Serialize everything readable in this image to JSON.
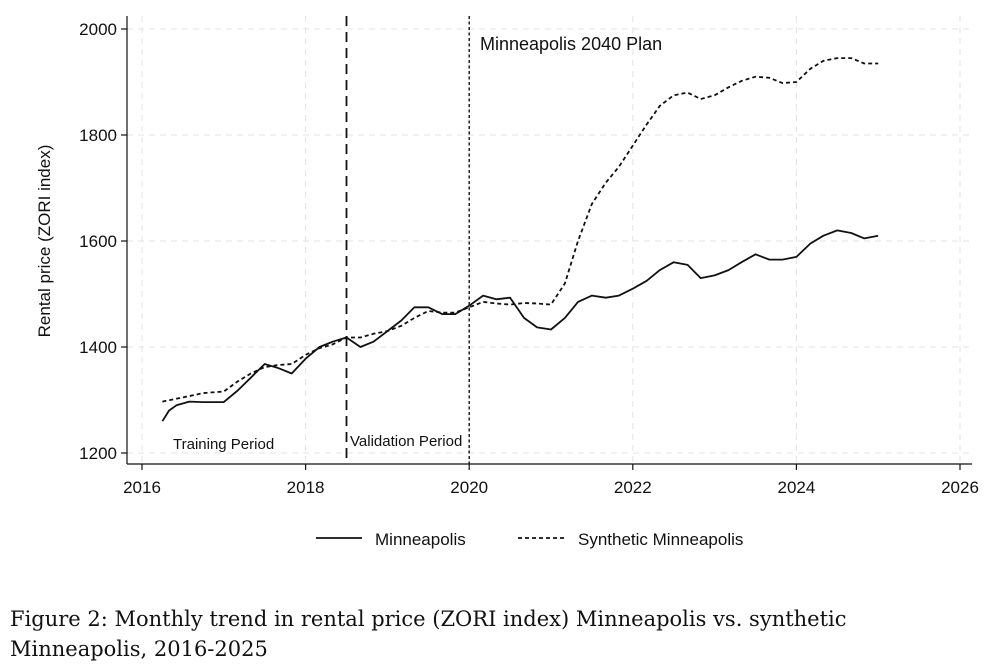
{
  "chart_data": {
    "type": "line",
    "xlabel": "",
    "ylabel": "Rental price (ZORI index)",
    "xlim": [
      2016,
      2026
    ],
    "ylim": [
      1200,
      2000
    ],
    "xticks": [
      "2016",
      "2018",
      "2020",
      "2022",
      "2024",
      "2026"
    ],
    "yticks": [
      "1200",
      "1400",
      "1600",
      "1800",
      "2000"
    ],
    "grid": true,
    "legend_position": "bottom",
    "vertical_lines": [
      {
        "x": 2018.5,
        "style": "long-dash",
        "label": "Validation Period"
      },
      {
        "x": 2020.0,
        "style": "dotted",
        "label": "Minneapolis 2040 Plan"
      }
    ],
    "annotations": {
      "training": "Training Period",
      "validation": "Validation Period",
      "plan": "Minneapolis 2040 Plan"
    },
    "series": [
      {
        "name": "Minneapolis",
        "style": "solid",
        "x": [
          2016.25,
          2016.33,
          2016.42,
          2016.58,
          2016.75,
          2017.0,
          2017.17,
          2017.33,
          2017.5,
          2017.67,
          2017.83,
          2018.0,
          2018.17,
          2018.33,
          2018.5,
          2018.67,
          2018.83,
          2019.0,
          2019.17,
          2019.33,
          2019.5,
          2019.67,
          2019.83,
          2020.0,
          2020.17,
          2020.33,
          2020.5,
          2020.67,
          2020.83,
          2021.0,
          2021.17,
          2021.33,
          2021.5,
          2021.67,
          2021.83,
          2022.0,
          2022.17,
          2022.33,
          2022.5,
          2022.67,
          2022.83,
          2023.0,
          2023.17,
          2023.33,
          2023.5,
          2023.67,
          2023.83,
          2024.0,
          2024.17,
          2024.33,
          2024.5,
          2024.67,
          2024.83,
          2025.0
        ],
        "values": [
          1260,
          1280,
          1290,
          1297,
          1296,
          1296,
          1318,
          1342,
          1368,
          1360,
          1350,
          1378,
          1400,
          1410,
          1418,
          1400,
          1410,
          1430,
          1450,
          1475,
          1475,
          1462,
          1462,
          1478,
          1497,
          1490,
          1493,
          1455,
          1437,
          1433,
          1455,
          1485,
          1497,
          1493,
          1497,
          1510,
          1525,
          1545,
          1560,
          1555,
          1530,
          1535,
          1545,
          1560,
          1575,
          1565,
          1565,
          1570,
          1595,
          1610,
          1620,
          1615,
          1605,
          1610
        ]
      },
      {
        "name": "Synthetic Minneapolis",
        "style": "dashed",
        "x": [
          2016.25,
          2016.5,
          2016.75,
          2017.0,
          2017.17,
          2017.33,
          2017.5,
          2017.67,
          2017.83,
          2018.0,
          2018.17,
          2018.33,
          2018.5,
          2018.67,
          2018.83,
          2019.0,
          2019.17,
          2019.33,
          2019.5,
          2019.67,
          2019.83,
          2020.0,
          2020.17,
          2020.33,
          2020.5,
          2020.67,
          2020.83,
          2021.0,
          2021.17,
          2021.33,
          2021.5,
          2021.67,
          2021.83,
          2022.0,
          2022.17,
          2022.33,
          2022.5,
          2022.67,
          2022.83,
          2023.0,
          2023.17,
          2023.33,
          2023.5,
          2023.67,
          2023.83,
          2024.0,
          2024.17,
          2024.33,
          2024.5,
          2024.67,
          2024.83,
          2025.0
        ],
        "values": [
          1297,
          1305,
          1313,
          1316,
          1335,
          1350,
          1362,
          1366,
          1368,
          1385,
          1398,
          1405,
          1418,
          1418,
          1425,
          1430,
          1440,
          1455,
          1468,
          1465,
          1465,
          1475,
          1485,
          1482,
          1480,
          1483,
          1482,
          1480,
          1520,
          1600,
          1670,
          1710,
          1740,
          1780,
          1820,
          1855,
          1875,
          1880,
          1868,
          1875,
          1890,
          1902,
          1910,
          1908,
          1898,
          1900,
          1925,
          1940,
          1945,
          1945,
          1935,
          1935
        ]
      }
    ]
  },
  "caption": {
    "line1": "Figure 2:  Monthly trend in rental price (ZORI index) Minneapolis vs.  synthetic",
    "line2": "Minneapolis, 2016-2025"
  }
}
